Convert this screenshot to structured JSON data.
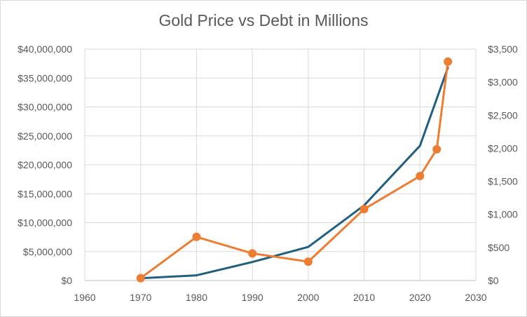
{
  "chart_data": {
    "type": "line",
    "title": "Gold Price vs Debt in Millions",
    "xlabel": "",
    "ylabel": "",
    "y2label": "",
    "x_axis": {
      "min": 1960,
      "max": 2030,
      "step": 10,
      "tick_labels": [
        "1960",
        "1970",
        "1980",
        "1990",
        "2000",
        "2010",
        "2020",
        "2030"
      ]
    },
    "y_axis": {
      "min": 0,
      "max": 40000000,
      "step": 5000000,
      "tick_labels": [
        "$0",
        "$5,000,000",
        "$10,000,000",
        "$15,000,000",
        "$20,000,000",
        "$25,000,000",
        "$30,000,000",
        "$35,000,000",
        "$40,000,000"
      ]
    },
    "y2_axis": {
      "min": 0,
      "max": 3500,
      "step": 500,
      "tick_labels": [
        "$0",
        "$500",
        "$1,000",
        "$1,500",
        "$2,000",
        "$2,500",
        "$3,000",
        "$3,500"
      ]
    },
    "grid": true,
    "legend": "none",
    "series": [
      {
        "axis": "left",
        "color": "#1f5f7f",
        "markers": false,
        "x": [
          1970,
          1980,
          1990,
          2000,
          2010,
          2020,
          2025
        ],
        "y": [
          400000,
          900000,
          3200000,
          5800000,
          13000000,
          23300000,
          36800000
        ]
      },
      {
        "axis": "right",
        "color": "#ed7d31",
        "markers": true,
        "x": [
          1970,
          1980,
          1990,
          2000,
          2010,
          2020,
          2023,
          2025
        ],
        "y": [
          36,
          660,
          410,
          285,
          1080,
          1580,
          1985,
          3310
        ]
      }
    ]
  }
}
